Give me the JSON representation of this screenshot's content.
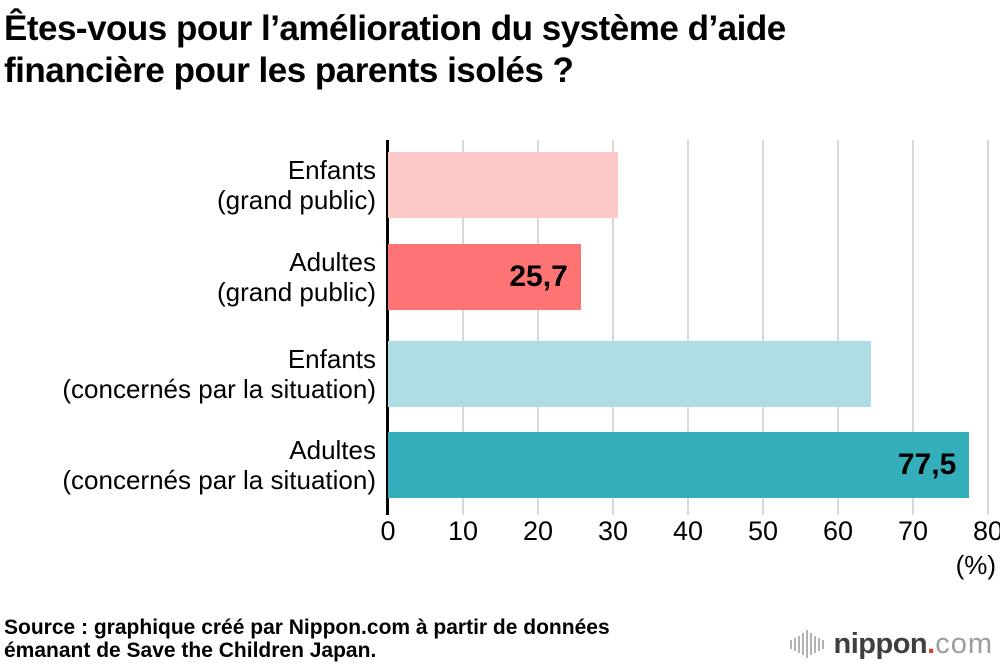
{
  "title_lines": [
    "Êtes-vous pour l’amélioration du système d’aide",
    "financière pour les parents isolés ?"
  ],
  "chart_data": {
    "type": "bar",
    "orientation": "horizontal",
    "title": "Êtes-vous pour l’amélioration du système d’aide financière pour les parents isolés ?",
    "categories": [
      "Enfants (grand public)",
      "Adultes (grand public)",
      "Enfants (concernés par la situation)",
      "Adultes (concernés par la situation)"
    ],
    "category_lines": [
      [
        "Enfants",
        "(grand public)"
      ],
      [
        "Adultes",
        "(grand public)"
      ],
      [
        "Enfants",
        "(concernés par la situation)"
      ],
      [
        "Adultes",
        "(concernés par la situation)"
      ]
    ],
    "values": [
      30.6,
      25.7,
      64.4,
      77.5
    ],
    "value_labels": [
      "",
      "25,7",
      "",
      "77,5"
    ],
    "bar_colors": [
      "#fec8c8",
      "#fe7474",
      "#aedee4",
      "#35aebc"
    ],
    "xlim": [
      0,
      80
    ],
    "xticks": [
      0,
      10,
      20,
      30,
      40,
      50,
      60,
      70,
      80
    ],
    "unit_label": "(%)",
    "xlabel": "",
    "ylabel": "",
    "grid": "vertical",
    "gridline_color": "#d8d8d8",
    "axis_color": "#000000",
    "legend": "none"
  },
  "source_lines": [
    "Source : graphique créé par Nippon.com à partir de données",
    "émanant de Save the Children Japan."
  ],
  "logo": {
    "name": "nippon",
    "dot": ".",
    "tld": "com",
    "dot_color": "#e5372c",
    "icon": "sound-wave-icon",
    "icon_bar_heights": [
      9,
      13,
      17,
      22,
      28,
      22,
      17,
      13,
      9
    ]
  }
}
